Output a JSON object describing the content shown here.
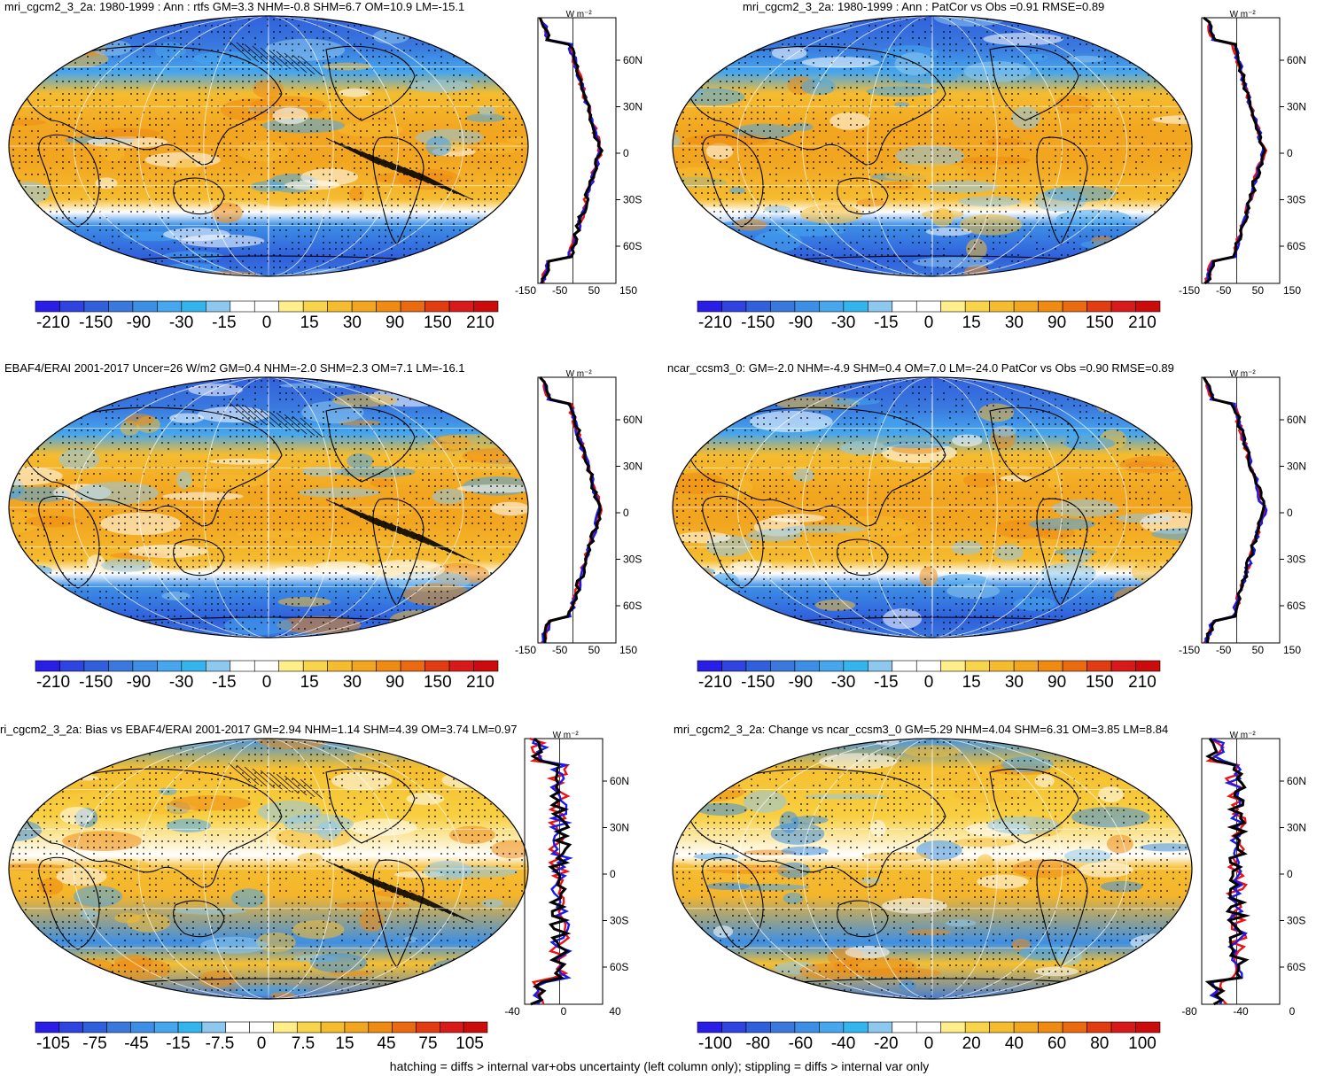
{
  "panels": [
    {
      "title": "mri_cgcm2_3_2a: 1980-1999 : Ann : rtfs GM=3.3 NHM=-0.8 SHM=6.7 OM=10.9 LM=-15.1",
      "colorbar_labels": [
        "-210",
        "-150",
        "-90",
        "-30",
        "-15",
        "0",
        "15",
        "30",
        "90",
        "150",
        "210"
      ],
      "profile_xticks": [
        "-150",
        "-50",
        "50",
        "150"
      ],
      "profile_unit": "W m⁻²"
    },
    {
      "title": "mri_cgcm2_3_2a: 1980-1999 : Ann : PatCor vs Obs =0.91 RMSE=0.89",
      "colorbar_labels": [
        "-210",
        "-150",
        "-90",
        "-30",
        "-15",
        "0",
        "15",
        "30",
        "90",
        "150",
        "210"
      ],
      "profile_xticks": [
        "-150",
        "-50",
        "50",
        "150"
      ],
      "profile_unit": "W m⁻²"
    },
    {
      "title": "EBAF4/ERAI 2001-2017 Uncer=26 W/m2 GM=0.4 NHM=-2.0 SHM=2.3 OM=7.1 LM=-16.1",
      "colorbar_labels": [
        "-210",
        "-150",
        "-90",
        "-30",
        "-15",
        "0",
        "15",
        "30",
        "90",
        "150",
        "210"
      ],
      "profile_xticks": [
        "-150",
        "-50",
        "50",
        "150"
      ],
      "profile_unit": "W m⁻²"
    },
    {
      "title": "ncar_ccsm3_0: GM=-2.0 NHM=-4.9 SHM=0.4 OM=7.0 LM=-24.0 PatCor vs Obs =0.90 RMSE=0.89",
      "colorbar_labels": [
        "-210",
        "-150",
        "-90",
        "-30",
        "-15",
        "0",
        "15",
        "30",
        "90",
        "150",
        "210"
      ],
      "profile_xticks": [
        "-150",
        "-50",
        "50",
        "150"
      ],
      "profile_unit": "W m⁻²"
    },
    {
      "title": "ri_cgcm2_3_2a: Bias vs EBAF4/ERAI 2001-2017 GM=2.94 NHM=1.14 SHM=4.39 OM=3.74 LM=0.97",
      "colorbar_labels": [
        "-105",
        "-75",
        "-45",
        "-15",
        "-7.5",
        "0",
        "7.5",
        "15",
        "45",
        "75",
        "105"
      ],
      "profile_xticks": [
        "-40",
        "0",
        "40"
      ],
      "profile_unit": "W m⁻²"
    },
    {
      "title": "mri_cgcm2_3_2a: Change vs ncar_ccsm3_0 GM=5.29 NHM=4.04 SHM=6.31 OM=3.85 LM=8.84",
      "colorbar_labels": [
        "-100",
        "-80",
        "-60",
        "-40",
        "-20",
        "0",
        "20",
        "40",
        "60",
        "80",
        "100"
      ],
      "profile_xticks": [
        "-80",
        "-40",
        "0"
      ],
      "profile_unit": "W m⁻²"
    }
  ],
  "lat_labels": [
    "60N",
    "30N",
    "0",
    "30S",
    "60S"
  ],
  "colors": {
    "colorbar": [
      "#2a1ee6",
      "#2e43e0",
      "#3060dc",
      "#3a78de",
      "#3d8fe6",
      "#46a6ee",
      "#34b4ec",
      "#8ec8ee",
      "#ffffff",
      "#ffffff",
      "#ffee8a",
      "#f8d44a",
      "#f5bc30",
      "#f2a51e",
      "#ef8a12",
      "#ea6a10",
      "#e23c12",
      "#d81a1a",
      "#cc0c0c"
    ],
    "profile_black": "#000000",
    "profile_red": "#ee1111",
    "profile_blue": "#1a1aee"
  },
  "footnote": "hatching = diffs > internal var+obs uncertainty (left column only); stippling = diffs > internal var only"
}
